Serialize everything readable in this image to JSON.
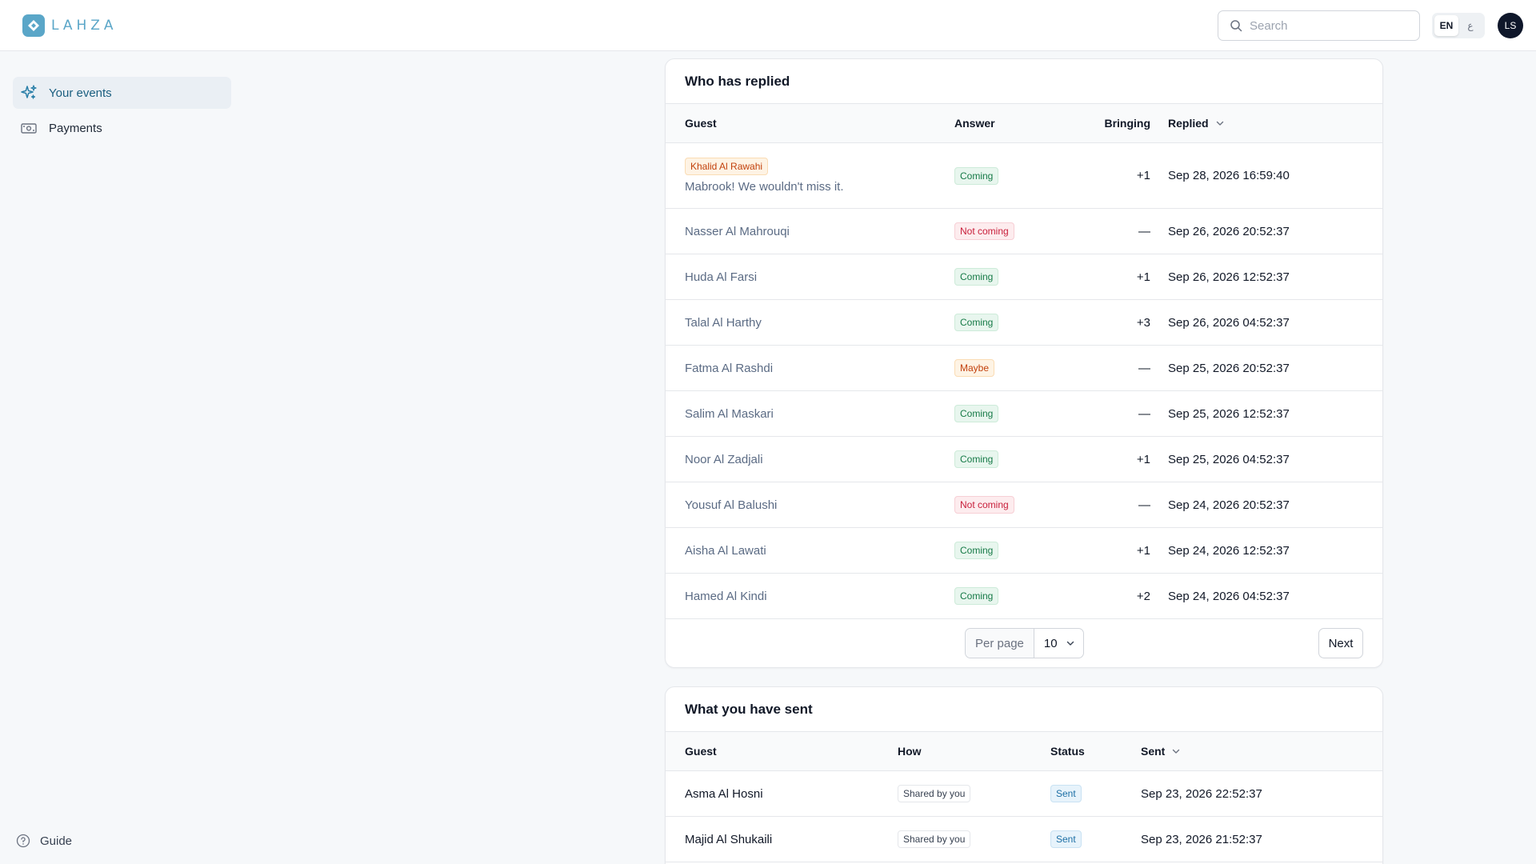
{
  "app": {
    "name": "LAHZA"
  },
  "header": {
    "search_placeholder": "Search",
    "lang_active": "EN",
    "lang_alt": "ع",
    "avatar_initials": "LS"
  },
  "sidebar": {
    "items": [
      {
        "label": "Your events",
        "icon": "sparkles-icon",
        "active": true
      },
      {
        "label": "Payments",
        "icon": "banknote-icon",
        "active": false
      }
    ],
    "guide_label": "Guide"
  },
  "replied": {
    "title": "Who has replied",
    "columns": {
      "guest": "Guest",
      "answer": "Answer",
      "bringing": "Bringing",
      "replied": "Replied"
    },
    "featured": {
      "guest": "Khalid Al Rawahi",
      "message": "Mabrook! We wouldn't miss it.",
      "answer": "Coming",
      "bringing": "+1",
      "replied": "Sep 28, 2026 16:59:40"
    },
    "rows": [
      {
        "guest": "Nasser Al Mahrouqi",
        "answer": "Not coming",
        "bringing": "—",
        "replied": "Sep 26, 2026 20:52:37"
      },
      {
        "guest": "Huda Al Farsi",
        "answer": "Coming",
        "bringing": "+1",
        "replied": "Sep 26, 2026 12:52:37"
      },
      {
        "guest": "Talal Al Harthy",
        "answer": "Coming",
        "bringing": "+3",
        "replied": "Sep 26, 2026 04:52:37"
      },
      {
        "guest": "Fatma Al Rashdi",
        "answer": "Maybe",
        "bringing": "—",
        "replied": "Sep 25, 2026 20:52:37"
      },
      {
        "guest": "Salim Al Maskari",
        "answer": "Coming",
        "bringing": "—",
        "replied": "Sep 25, 2026 12:52:37"
      },
      {
        "guest": "Noor Al Zadjali",
        "answer": "Coming",
        "bringing": "+1",
        "replied": "Sep 25, 2026 04:52:37"
      },
      {
        "guest": "Yousuf Al Balushi",
        "answer": "Not coming",
        "bringing": "—",
        "replied": "Sep 24, 2026 20:52:37"
      },
      {
        "guest": "Aisha Al Lawati",
        "answer": "Coming",
        "bringing": "+1",
        "replied": "Sep 24, 2026 12:52:37"
      },
      {
        "guest": "Hamed Al Kindi",
        "answer": "Coming",
        "bringing": "+2",
        "replied": "Sep 24, 2026 04:52:37"
      }
    ],
    "pagination": {
      "per_page_label": "Per page",
      "per_page_value": "10",
      "next_label": "Next"
    }
  },
  "sent": {
    "title": "What you have sent",
    "columns": {
      "guest": "Guest",
      "how": "How",
      "status": "Status",
      "sent": "Sent"
    },
    "rows": [
      {
        "guest": "Asma Al Hosni",
        "how": "Shared by you",
        "status": "Sent",
        "sent": "Sep 23, 2026 22:52:37"
      },
      {
        "guest": "Majid Al Shukaili",
        "how": "Shared by you",
        "status": "Sent",
        "sent": "Sep 23, 2026 21:52:37"
      }
    ]
  },
  "colors": {
    "accent": "#5aa6c8",
    "active_nav_text": "#1b5f80",
    "coming": "#167a47",
    "not_coming": "#c81e3a",
    "maybe": "#c2410c",
    "sent": "#1d6fa5"
  }
}
